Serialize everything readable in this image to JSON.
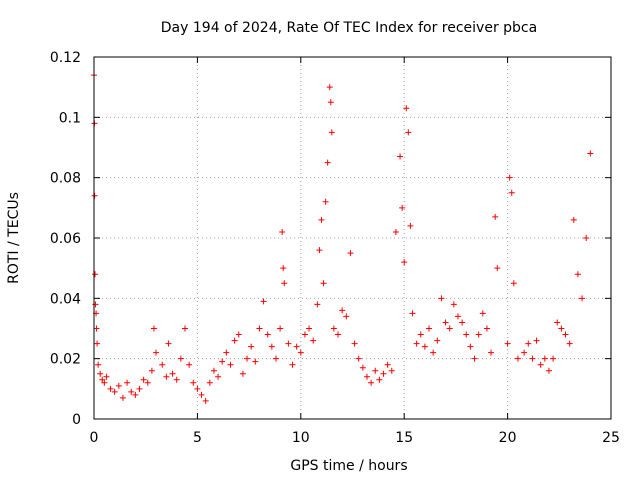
{
  "chart_data": {
    "type": "scatter",
    "title": "Day 194 of 2024, Rate Of TEC Index for receiver pbca",
    "xlabel": "GPS time / hours",
    "ylabel": "ROTI / TECUs",
    "xlim": [
      0,
      25
    ],
    "ylim": [
      0,
      0.12
    ],
    "x_ticks": [
      0,
      5,
      10,
      15,
      20,
      25
    ],
    "x_tick_labels": [
      "0",
      "5",
      "10",
      "15",
      "20",
      "25"
    ],
    "y_ticks": [
      0,
      0.02,
      0.04,
      0.06,
      0.08,
      0.1,
      0.12
    ],
    "y_tick_labels": [
      "0",
      "0.02",
      "0.04",
      "0.06",
      "0.08",
      "0.1",
      "0.12"
    ],
    "grid": true,
    "marker": "plus",
    "color": "#ff0000",
    "series": [
      {
        "name": "ROTI",
        "points": [
          [
            0.0,
            0.114
          ],
          [
            0.02,
            0.098
          ],
          [
            0.03,
            0.074
          ],
          [
            0.05,
            0.048
          ],
          [
            0.07,
            0.038
          ],
          [
            0.1,
            0.035
          ],
          [
            0.12,
            0.03
          ],
          [
            0.15,
            0.025
          ],
          [
            0.2,
            0.018
          ],
          [
            0.3,
            0.015
          ],
          [
            0.4,
            0.013
          ],
          [
            0.5,
            0.012
          ],
          [
            0.6,
            0.014
          ],
          [
            0.8,
            0.01
          ],
          [
            1.0,
            0.009
          ],
          [
            1.2,
            0.011
          ],
          [
            1.4,
            0.007
          ],
          [
            1.6,
            0.012
          ],
          [
            1.8,
            0.009
          ],
          [
            2.0,
            0.008
          ],
          [
            2.2,
            0.01
          ],
          [
            2.4,
            0.013
          ],
          [
            2.6,
            0.012
          ],
          [
            2.8,
            0.016
          ],
          [
            2.9,
            0.03
          ],
          [
            3.0,
            0.022
          ],
          [
            3.3,
            0.018
          ],
          [
            3.5,
            0.014
          ],
          [
            3.6,
            0.025
          ],
          [
            3.8,
            0.015
          ],
          [
            4.0,
            0.013
          ],
          [
            4.2,
            0.02
          ],
          [
            4.4,
            0.03
          ],
          [
            4.6,
            0.018
          ],
          [
            4.8,
            0.012
          ],
          [
            5.0,
            0.01
          ],
          [
            5.2,
            0.008
          ],
          [
            5.4,
            0.006
          ],
          [
            5.6,
            0.012
          ],
          [
            5.8,
            0.016
          ],
          [
            6.0,
            0.014
          ],
          [
            6.2,
            0.019
          ],
          [
            6.4,
            0.022
          ],
          [
            6.6,
            0.018
          ],
          [
            6.8,
            0.026
          ],
          [
            7.0,
            0.028
          ],
          [
            7.2,
            0.015
          ],
          [
            7.4,
            0.02
          ],
          [
            7.6,
            0.024
          ],
          [
            7.8,
            0.019
          ],
          [
            8.0,
            0.03
          ],
          [
            8.2,
            0.039
          ],
          [
            8.4,
            0.028
          ],
          [
            8.6,
            0.024
          ],
          [
            8.8,
            0.02
          ],
          [
            9.0,
            0.03
          ],
          [
            9.1,
            0.062
          ],
          [
            9.15,
            0.05
          ],
          [
            9.2,
            0.045
          ],
          [
            9.4,
            0.025
          ],
          [
            9.6,
            0.018
          ],
          [
            9.8,
            0.024
          ],
          [
            10.0,
            0.022
          ],
          [
            10.2,
            0.028
          ],
          [
            10.4,
            0.03
          ],
          [
            10.6,
            0.026
          ],
          [
            10.8,
            0.038
          ],
          [
            10.9,
            0.056
          ],
          [
            11.0,
            0.066
          ],
          [
            11.1,
            0.045
          ],
          [
            11.2,
            0.072
          ],
          [
            11.3,
            0.085
          ],
          [
            11.4,
            0.11
          ],
          [
            11.45,
            0.105
          ],
          [
            11.5,
            0.095
          ],
          [
            11.6,
            0.03
          ],
          [
            11.8,
            0.028
          ],
          [
            12.0,
            0.036
          ],
          [
            12.2,
            0.034
          ],
          [
            12.4,
            0.055
          ],
          [
            12.6,
            0.025
          ],
          [
            12.8,
            0.02
          ],
          [
            13.0,
            0.017
          ],
          [
            13.2,
            0.014
          ],
          [
            13.4,
            0.012
          ],
          [
            13.6,
            0.016
          ],
          [
            13.8,
            0.013
          ],
          [
            14.0,
            0.015
          ],
          [
            14.2,
            0.018
          ],
          [
            14.4,
            0.016
          ],
          [
            14.6,
            0.062
          ],
          [
            14.8,
            0.087
          ],
          [
            14.9,
            0.07
          ],
          [
            15.0,
            0.052
          ],
          [
            15.1,
            0.103
          ],
          [
            15.2,
            0.095
          ],
          [
            15.3,
            0.064
          ],
          [
            15.4,
            0.035
          ],
          [
            15.6,
            0.025
          ],
          [
            15.8,
            0.028
          ],
          [
            16.0,
            0.024
          ],
          [
            16.2,
            0.03
          ],
          [
            16.4,
            0.022
          ],
          [
            16.6,
            0.026
          ],
          [
            16.8,
            0.04
          ],
          [
            17.0,
            0.032
          ],
          [
            17.2,
            0.03
          ],
          [
            17.4,
            0.038
          ],
          [
            17.6,
            0.034
          ],
          [
            17.8,
            0.032
          ],
          [
            18.0,
            0.028
          ],
          [
            18.2,
            0.024
          ],
          [
            18.4,
            0.02
          ],
          [
            18.6,
            0.028
          ],
          [
            18.8,
            0.035
          ],
          [
            19.0,
            0.03
          ],
          [
            19.2,
            0.022
          ],
          [
            19.4,
            0.067
          ],
          [
            19.5,
            0.05
          ],
          [
            20.0,
            0.025
          ],
          [
            20.1,
            0.08
          ],
          [
            20.2,
            0.075
          ],
          [
            20.3,
            0.045
          ],
          [
            20.5,
            0.02
          ],
          [
            20.8,
            0.022
          ],
          [
            21.0,
            0.025
          ],
          [
            21.2,
            0.02
          ],
          [
            21.4,
            0.026
          ],
          [
            21.6,
            0.018
          ],
          [
            21.8,
            0.02
          ],
          [
            22.0,
            0.016
          ],
          [
            22.2,
            0.02
          ],
          [
            22.4,
            0.032
          ],
          [
            22.6,
            0.03
          ],
          [
            22.8,
            0.028
          ],
          [
            23.0,
            0.025
          ],
          [
            23.2,
            0.066
          ],
          [
            23.4,
            0.048
          ],
          [
            23.6,
            0.04
          ],
          [
            23.8,
            0.06
          ],
          [
            24.0,
            0.088
          ]
        ]
      }
    ]
  }
}
